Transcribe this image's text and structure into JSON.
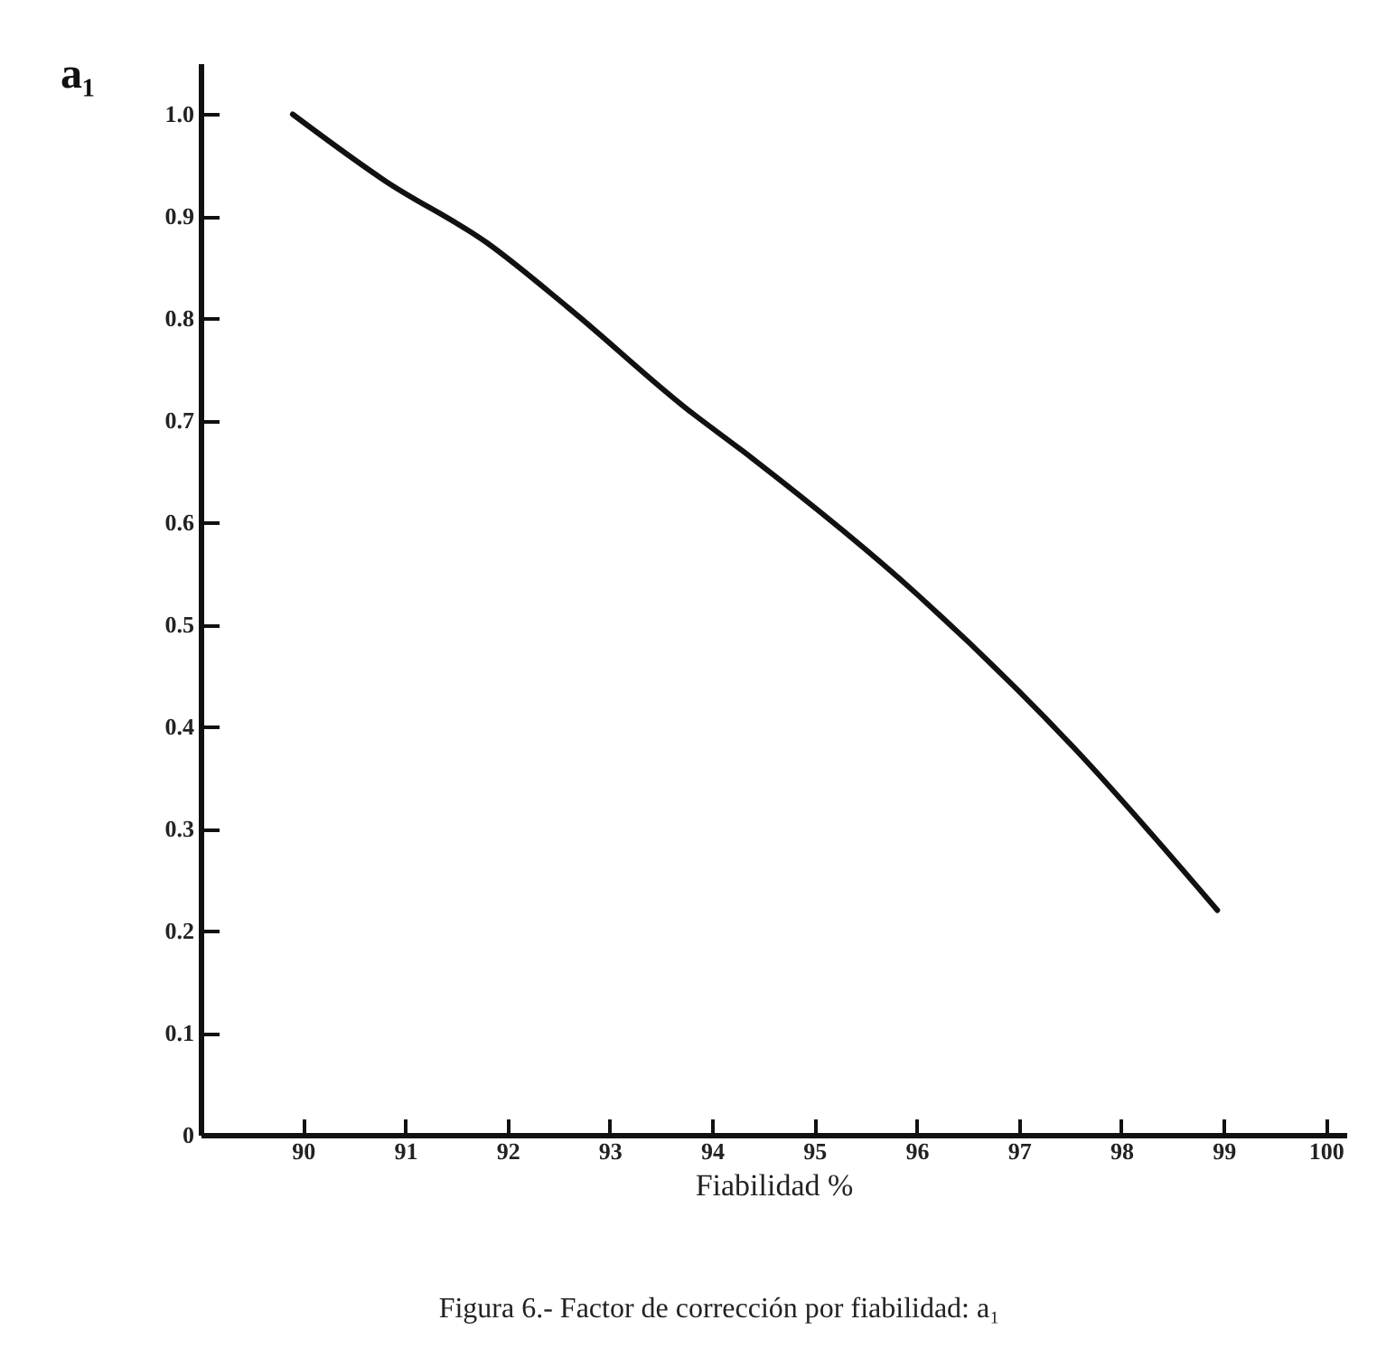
{
  "chart_data": {
    "type": "line",
    "title": "Figura 6.- Factor de corrección por fiabilidad: a₁",
    "xlabel": "Fiabilidad %",
    "ylabel": "a₁",
    "x": [
      89.9,
      90.8,
      91.8,
      92.6,
      93.77,
      94.3,
      96.0,
      97.53,
      98.94
    ],
    "series": [
      {
        "color": "#111111",
        "values": [
          1.0,
          0.935,
          0.874,
          0.81,
          0.71,
          0.67,
          0.53,
          0.38,
          0.22
        ]
      }
    ],
    "xlim": [
      89,
      100.2
    ],
    "xticks": [
      90,
      91,
      92,
      93,
      94,
      95,
      96,
      97,
      98,
      99,
      100
    ],
    "ylim": [
      0,
      1.05
    ],
    "yticks": [
      0,
      0.1,
      0.2,
      0.3,
      0.4,
      0.5,
      0.6,
      0.7,
      0.8,
      0.9,
      {
        "value": 1,
        "label": "1.0"
      }
    ]
  }
}
